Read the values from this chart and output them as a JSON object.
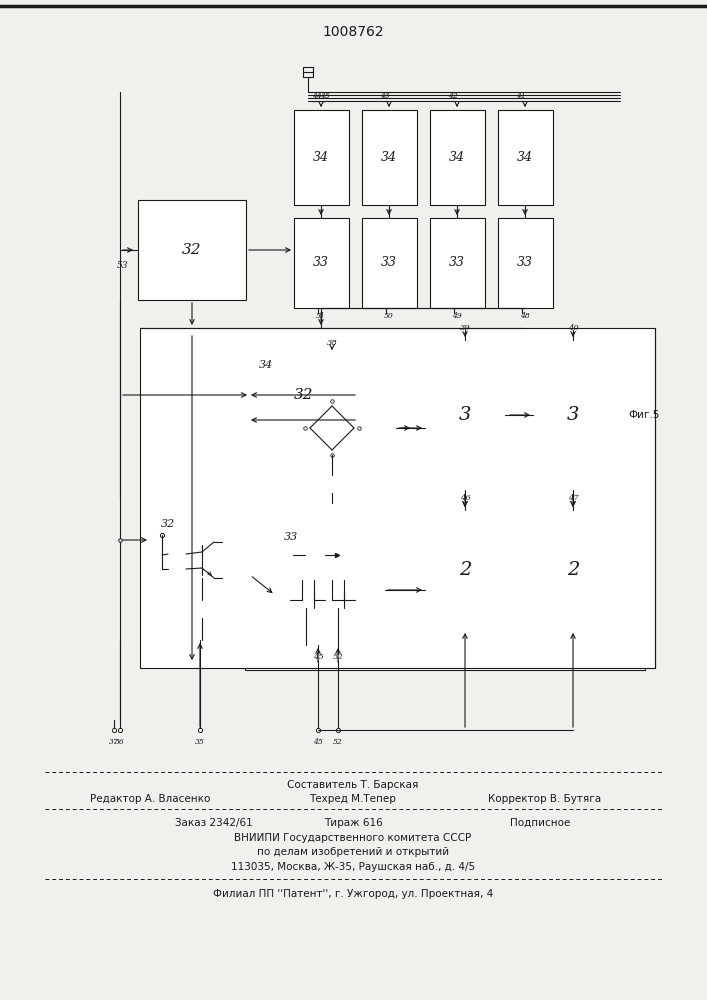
{
  "patent_number": "1008762",
  "background_color": "#f0f0ec",
  "line_color": "#1a1a1a",
  "fig_width": 7.07,
  "fig_height": 10.0,
  "footer_line1": "Составитель Т. Барская",
  "footer_line2_left": "Редактор А. Власенко",
  "footer_line2_mid": "Техред М.Тепер",
  "footer_line2_right": "Корректор В. Бутяга",
  "footer_line3_left": "Заказ 2342/61",
  "footer_line3_mid": "Тираж 616",
  "footer_line3_right": "Подписное",
  "footer_line4": "ВНИИПИ Государственного комитета СССР",
  "footer_line5": "по делам изобретений и открытий",
  "footer_line6": "113035, Москва, Ж-35, Раушская наб., д. 4/5",
  "footer_line7": "Филиал ПП ''Патент'', г. Ужгород, ул. Проектная, 4"
}
